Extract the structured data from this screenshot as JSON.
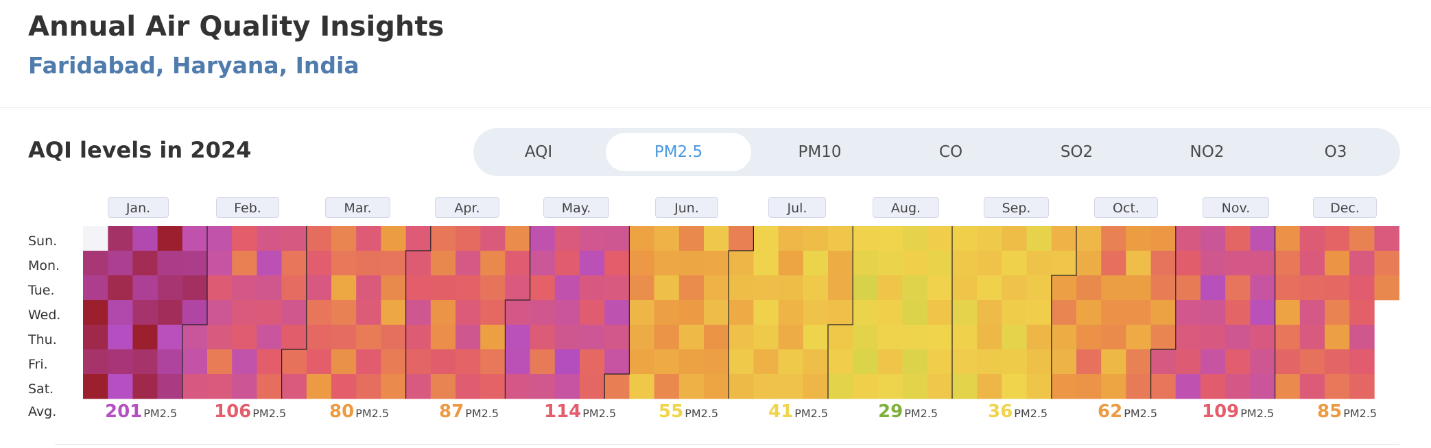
{
  "header": {
    "title": "Annual Air Quality Insights",
    "location": "Faridabad, Haryana, India"
  },
  "section": {
    "title": "AQI levels in 2024"
  },
  "tabs": [
    {
      "label": "AQI",
      "active": false
    },
    {
      "label": "PM2.5",
      "active": true
    },
    {
      "label": "PM10",
      "active": false
    },
    {
      "label": "CO",
      "active": false
    },
    {
      "label": "SO2",
      "active": false
    },
    {
      "label": "NO2",
      "active": false
    },
    {
      "label": "O3",
      "active": false
    }
  ],
  "days": [
    "Sun.",
    "Mon.",
    "Tue.",
    "Wed.",
    "Thu.",
    "Fri.",
    "Sat."
  ],
  "avg_row_label": "Avg.",
  "unit": "PM2.5",
  "colors": {
    "good": "#a8cf45",
    "moderate": "#f0d44c",
    "unhealthy_sensitive": "#ec9b42",
    "unhealthy": "#e35d6a",
    "very_unhealthy": "#b54fc2",
    "hazardous": "#9b1f2d"
  },
  "chart_data": {
    "type": "heatmap",
    "title": "AQI levels in 2024",
    "year": 2024,
    "metric": "PM2.5",
    "months": [
      "Jan.",
      "Feb.",
      "Mar.",
      "Apr.",
      "May.",
      "Jun.",
      "Jul.",
      "Aug.",
      "Sep.",
      "Oct.",
      "Nov.",
      "Dec."
    ],
    "monthly_avg": [
      201,
      106,
      80,
      87,
      114,
      55,
      41,
      29,
      36,
      62,
      109,
      85
    ],
    "avg_colors": [
      "#b54fc2",
      "#e35d6a",
      "#ec9b42",
      "#ec9b42",
      "#e35d6a",
      "#f0d44c",
      "#f0d44c",
      "#7fb03a",
      "#f0d44c",
      "#ec9b42",
      "#e35d6a",
      "#ec9b42"
    ]
  }
}
